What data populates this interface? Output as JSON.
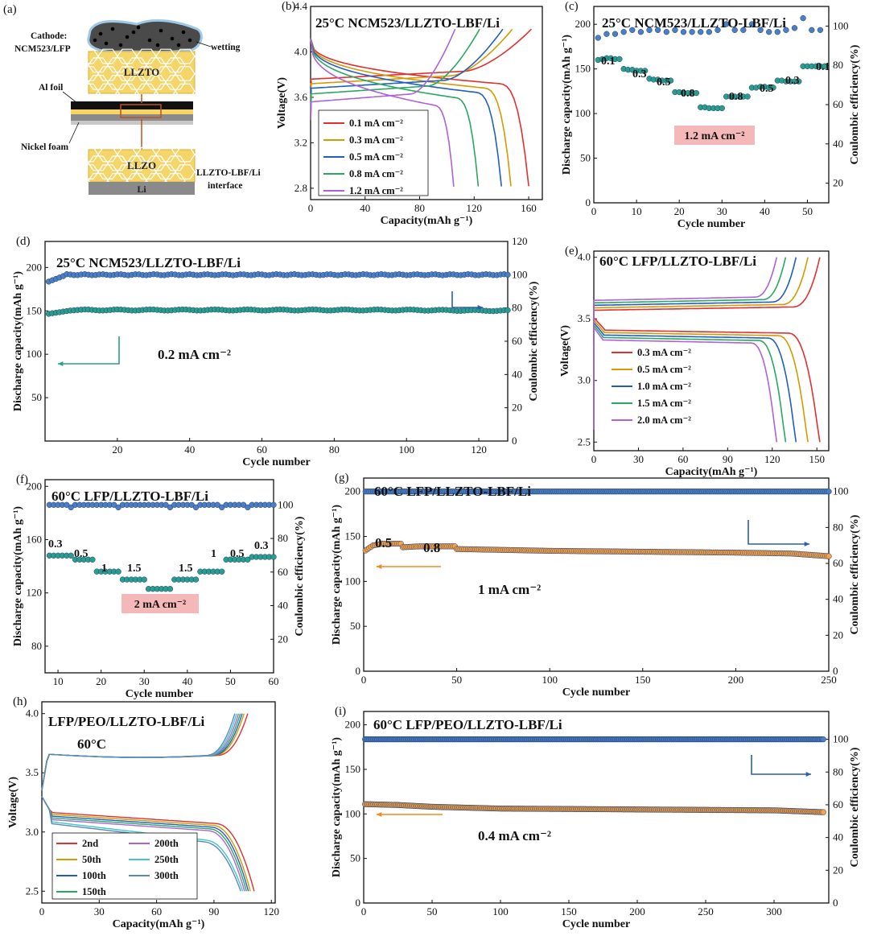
{
  "schematic": {
    "panel_label": "(a)",
    "cathode_label": "Cathode:",
    "cathode_material": "NCM523/LFP",
    "wetting": "wetting",
    "llzto": "LLZTO",
    "al_foil": "Al foil",
    "nickel_foam": "Nickel foam",
    "llzo": "LLZO",
    "li": "Li",
    "interface_1": "LLZTO-LBF/Li",
    "interface_2": "interface"
  },
  "chart_data": [
    {
      "id": "b",
      "panel_label": "(b)",
      "type": "line",
      "title": "25°C NCM523/LLZTO-LBF/Li",
      "xlabel": "Capacity(mAh g⁻¹)",
      "ylabel": "Voltage(V)",
      "xlim": [
        0,
        170
      ],
      "ylim": [
        2.7,
        4.4
      ],
      "xticks": [
        "0",
        "40",
        "80",
        "120",
        "160"
      ],
      "yticks": [
        "2.8",
        "3.2",
        "3.6",
        "4.0",
        "4.4"
      ],
      "legend_placement": "bottom-left",
      "series": [
        {
          "name": "0.1 mA cm⁻²",
          "color": "#e03030",
          "discharge_capacity": 160,
          "charge_capacity": 162,
          "plateau_V": 3.7
        },
        {
          "name": "0.3 mA cm⁻²",
          "color": "#d49a00",
          "discharge_capacity": 147,
          "charge_capacity": 148,
          "plateau_V": 3.66
        },
        {
          "name": "0.5 mA cm⁻²",
          "color": "#1f5fbf",
          "discharge_capacity": 140,
          "charge_capacity": 141,
          "plateau_V": 3.62
        },
        {
          "name": "0.8 mA cm⁻²",
          "color": "#2aa860",
          "discharge_capacity": 123,
          "charge_capacity": 124,
          "plateau_V": 3.57
        },
        {
          "name": "1.2 mA cm⁻²",
          "color": "#b060d8",
          "discharge_capacity": 105,
          "charge_capacity": 106,
          "plateau_V": 3.5
        }
      ]
    },
    {
      "id": "c",
      "panel_label": "(c)",
      "type": "scatter",
      "title": "25°C NCM523/LLZTO-LBF/Li",
      "xlabel": "Cycle number",
      "ylabel": "Discharge capacity(mAh g⁻¹)",
      "y2label": "Coulombic efficiency(%)",
      "xlim": [
        0,
        55
      ],
      "ylim": [
        0,
        220
      ],
      "y2lim": [
        10,
        110
      ],
      "xticks": [
        "0",
        "10",
        "20",
        "30",
        "40",
        "50"
      ],
      "yticks": [
        "0",
        "50",
        "100",
        "150",
        "200"
      ],
      "y2ticks": [
        "20",
        "40",
        "60",
        "80",
        "100"
      ],
      "box_label": "1.2 mA cm⁻²",
      "rate_labels": [
        "0.1",
        "0.3",
        "0.5",
        "0.8",
        "1.2",
        "0.8",
        "0.5",
        "0.3",
        "0.1"
      ],
      "capacity_series": {
        "x": [
          1,
          2,
          3,
          4,
          5,
          6,
          7,
          8,
          9,
          10,
          11,
          12,
          13,
          14,
          15,
          16,
          17,
          18,
          19,
          20,
          21,
          22,
          23,
          24,
          25,
          26,
          27,
          28,
          29,
          30,
          31,
          32,
          33,
          34,
          35,
          36,
          37,
          38,
          39,
          40,
          41,
          42,
          43,
          44,
          45,
          46,
          47,
          48,
          49,
          50,
          51,
          52,
          53,
          54
        ],
        "y": [
          160,
          161,
          162,
          162,
          161,
          161,
          150,
          149,
          149,
          148,
          148,
          148,
          139,
          138,
          138,
          137,
          137,
          137,
          124,
          124,
          123,
          123,
          123,
          123,
          107,
          107,
          106,
          106,
          106,
          106,
          119,
          119,
          119,
          119,
          119,
          119,
          129,
          129,
          130,
          130,
          129,
          129,
          137,
          137,
          136,
          136,
          136,
          136,
          153,
          153,
          153,
          153,
          153,
          153
        ]
      },
      "efficiency_series": {
        "x": [
          1,
          3,
          5,
          7,
          9,
          11,
          13,
          15,
          17,
          19,
          21,
          23,
          25,
          27,
          29,
          31,
          33,
          35,
          37,
          39,
          41,
          43,
          45,
          47,
          49,
          51,
          53
        ],
        "y": [
          94,
          96,
          96,
          97,
          98,
          97,
          98,
          98,
          97,
          98,
          97,
          97,
          97,
          97,
          98,
          101,
          98,
          98,
          101,
          98,
          97,
          97,
          98,
          99,
          104,
          98,
          98
        ]
      }
    },
    {
      "id": "d",
      "panel_label": "(d)",
      "type": "scatter",
      "title": "25°C  NCM523/LLZTO-LBF/Li",
      "xlabel": "Cycle number",
      "ylabel": "Discharge capacity(mAh g⁻¹)",
      "y2label": "Coulombic efficiency(%)",
      "xlim": [
        0,
        128
      ],
      "ylim": [
        0,
        230
      ],
      "y2lim": [
        0,
        120
      ],
      "xticks": [
        "20",
        "40",
        "60",
        "80",
        "100",
        "120"
      ],
      "yticks": [
        "50",
        "100",
        "150",
        "200"
      ],
      "y2ticks": [
        "0",
        "20",
        "40",
        "60",
        "80",
        "100",
        "120"
      ],
      "annotation": "0.2 mA cm⁻²",
      "capacity_series": {
        "start": 146,
        "steady": 151,
        "end": 150
      },
      "efficiency_series": {
        "start": 95,
        "steady": 100
      }
    },
    {
      "id": "e",
      "panel_label": "(e)",
      "type": "line",
      "title": "60°C LFP/LLZTO-LBF/Li",
      "xlabel": "Capacity(mAh g⁻¹)",
      "ylabel": "Voltage(V)",
      "xlim": [
        0,
        158
      ],
      "ylim": [
        2.43,
        4.05
      ],
      "xticks": [
        "0",
        "30",
        "60",
        "90",
        "120",
        "150"
      ],
      "yticks": [
        "2.5",
        "3.0",
        "3.5",
        "4.0"
      ],
      "legend_placement": "bottom-left",
      "series": [
        {
          "name": "0.3 mA cm⁻²",
          "color": "#e03030",
          "discharge_capacity": 152,
          "plateau_V": 3.41
        },
        {
          "name": "0.5 mA cm⁻²",
          "color": "#d49a00",
          "discharge_capacity": 144,
          "plateau_V": 3.39
        },
        {
          "name": "1.0 mA cm⁻²",
          "color": "#1f5fbf",
          "discharge_capacity": 136,
          "plateau_V": 3.37
        },
        {
          "name": "1.5 mA cm⁻²",
          "color": "#2aa860",
          "discharge_capacity": 129,
          "plateau_V": 3.35
        },
        {
          "name": "2.0 mA cm⁻²",
          "color": "#b060d8",
          "discharge_capacity": 123,
          "plateau_V": 3.33
        }
      ]
    },
    {
      "id": "f",
      "panel_label": "(f)",
      "type": "scatter",
      "title": "60°C  LFP/LLZTO-LBF/Li",
      "xlabel": "Cycle number",
      "ylabel": "Discharge capacity(mAh g⁻¹)",
      "y2label": "Coulombic efficiency(%)",
      "xlim": [
        7,
        60
      ],
      "ylim": [
        60,
        205
      ],
      "y2lim": [
        0,
        115
      ],
      "xticks": [
        "10",
        "20",
        "30",
        "40",
        "50",
        "60"
      ],
      "yticks": [
        "80",
        "120",
        "160",
        "200"
      ],
      "y2ticks": [
        "20",
        "40",
        "60",
        "80",
        "100"
      ],
      "box_label": "2 mA cm⁻²",
      "rate_labels": [
        "0.3",
        "0.5",
        "1",
        "1.5",
        "2",
        "1.5",
        "1",
        "0.5",
        "0.3"
      ],
      "capacity_series": {
        "segments": [
          [
            8,
            13,
            148
          ],
          [
            14,
            18,
            145
          ],
          [
            19,
            24,
            136
          ],
          [
            25,
            30,
            130
          ],
          [
            31,
            36,
            123
          ],
          [
            37,
            42,
            130
          ],
          [
            43,
            48,
            136
          ],
          [
            49,
            54,
            145
          ],
          [
            55,
            60,
            147
          ]
        ]
      },
      "efficiency_series": {
        "value": 100
      }
    },
    {
      "id": "g",
      "panel_label": "(g)",
      "type": "scatter",
      "title": "60°C  LFP/LLZTO-LBF/Li",
      "xlabel": "Cycle number",
      "ylabel": "Discharge capacity(mAh g⁻¹)",
      "y2label": "Coulombic efficiency(%)",
      "xlim": [
        0,
        250
      ],
      "ylim": [
        0,
        215
      ],
      "y2lim": [
        0,
        107.5
      ],
      "xticks": [
        "0",
        "50",
        "100",
        "150",
        "200",
        "250"
      ],
      "yticks": [
        "0",
        "50",
        "100",
        "150",
        "200"
      ],
      "y2ticks": [
        "0",
        "20",
        "40",
        "60",
        "80",
        "100"
      ],
      "annotation": "1 mA cm⁻²",
      "rate_labels": [
        "0.5",
        "0.8"
      ],
      "capacity_series": {
        "x": [
          0,
          5,
          10,
          15,
          20,
          21,
          30,
          40,
          49,
          50,
          100,
          150,
          200,
          230,
          250
        ],
        "y": [
          133,
          140,
          142,
          142,
          142,
          138,
          139,
          139,
          139,
          136,
          134,
          133,
          132,
          131,
          128
        ]
      },
      "efficiency_series": {
        "value": 100
      }
    },
    {
      "id": "h",
      "panel_label": "(h)",
      "type": "line",
      "title": "LFP/PEO/LLZTO-LBF/Li",
      "subtitle": "60°C",
      "xlabel": "Capacity(mAh g⁻¹)",
      "ylabel": "Voltage(V)",
      "xlim": [
        0,
        122
      ],
      "ylim": [
        2.4,
        4.1
      ],
      "xticks": [
        "0",
        "30",
        "60",
        "90",
        "120"
      ],
      "yticks": [
        "2.5",
        "3.0",
        "3.5",
        "4.0"
      ],
      "legend_placement": "bottom-left",
      "series": [
        {
          "name": "2nd",
          "color": "#e03030",
          "discharge_capacity": 111
        },
        {
          "name": "50th",
          "color": "#d49a00",
          "discharge_capacity": 109
        },
        {
          "name": "100th",
          "color": "#1f5fbf",
          "discharge_capacity": 108
        },
        {
          "name": "150th",
          "color": "#2aa860",
          "discharge_capacity": 107
        },
        {
          "name": "200th",
          "color": "#b060d8",
          "discharge_capacity": 106
        },
        {
          "name": "250th",
          "color": "#40c8c8",
          "discharge_capacity": 105
        },
        {
          "name": "300th",
          "color": "#5a8ab8",
          "discharge_capacity": 104
        }
      ]
    },
    {
      "id": "i",
      "panel_label": "(i)",
      "type": "scatter",
      "title": "60°C  LFP/PEO/LLZTO-LBF/Li",
      "xlabel": "Cycle number",
      "ylabel": "Discharge capacity(mAh g⁻¹)",
      "y2label": "Coulombic efficiency(%)",
      "xlim": [
        0,
        340
      ],
      "ylim": [
        0,
        215
      ],
      "y2lim": [
        0,
        117
      ],
      "xticks": [
        "0",
        "50",
        "100",
        "150",
        "200",
        "250",
        "300"
      ],
      "yticks": [
        "0",
        "50",
        "100",
        "150",
        "200"
      ],
      "y2ticks": [
        "0",
        "20",
        "40",
        "60",
        "80",
        "100"
      ],
      "annotation": "0.4 mA cm⁻²",
      "capacity_series": {
        "x": [
          0,
          25,
          50,
          100,
          200,
          300,
          335
        ],
        "y": [
          111,
          110,
          108,
          106,
          105,
          104,
          102
        ]
      },
      "efficiency_series": {
        "value": 100
      }
    }
  ]
}
